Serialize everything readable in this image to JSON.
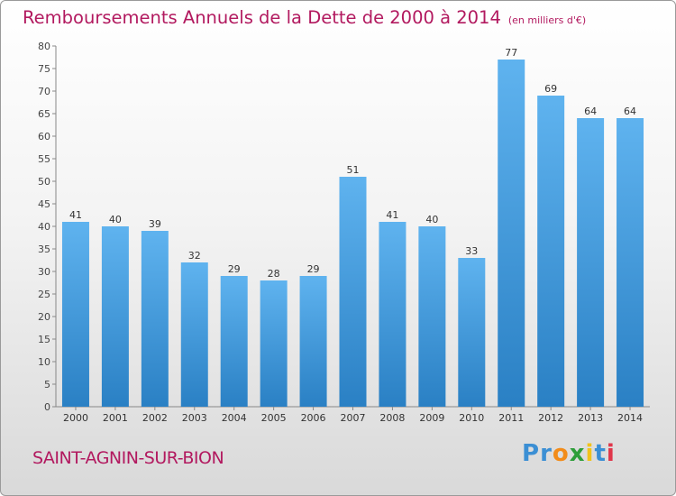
{
  "chart_data": {
    "type": "bar",
    "title": "Remboursements Annuels de la Dette de 2000 à 2014",
    "unit_note": "(en milliers d'€)",
    "categories": [
      "2000",
      "2001",
      "2002",
      "2003",
      "2004",
      "2005",
      "2006",
      "2007",
      "2008",
      "2009",
      "2010",
      "2011",
      "2012",
      "2013",
      "2014"
    ],
    "values": [
      41,
      40,
      39,
      32,
      29,
      28,
      29,
      51,
      41,
      40,
      33,
      77,
      69,
      64,
      64
    ],
    "ylim": [
      0,
      80
    ],
    "yticks": [
      0,
      5,
      10,
      15,
      20,
      25,
      30,
      35,
      40,
      45,
      50,
      55,
      60,
      65,
      70,
      75,
      80
    ],
    "xlabel": "",
    "ylabel": "",
    "grid": false,
    "colors": {
      "bar_light": "#5fb3ef",
      "bar_dark": "#2a80c4",
      "title": "#b2195f"
    }
  },
  "footer": {
    "commune": "SAINT-AGNIN-SUR-BION",
    "logo_letters": [
      "P",
      "r",
      "o",
      "x",
      "i",
      "t",
      "i"
    ],
    "logo_colors": [
      "#3b8fd4",
      "#3b8fd4",
      "#f28c1a",
      "#2e9e3a",
      "#f2c21a",
      "#3b8fd4",
      "#e0364a"
    ]
  }
}
